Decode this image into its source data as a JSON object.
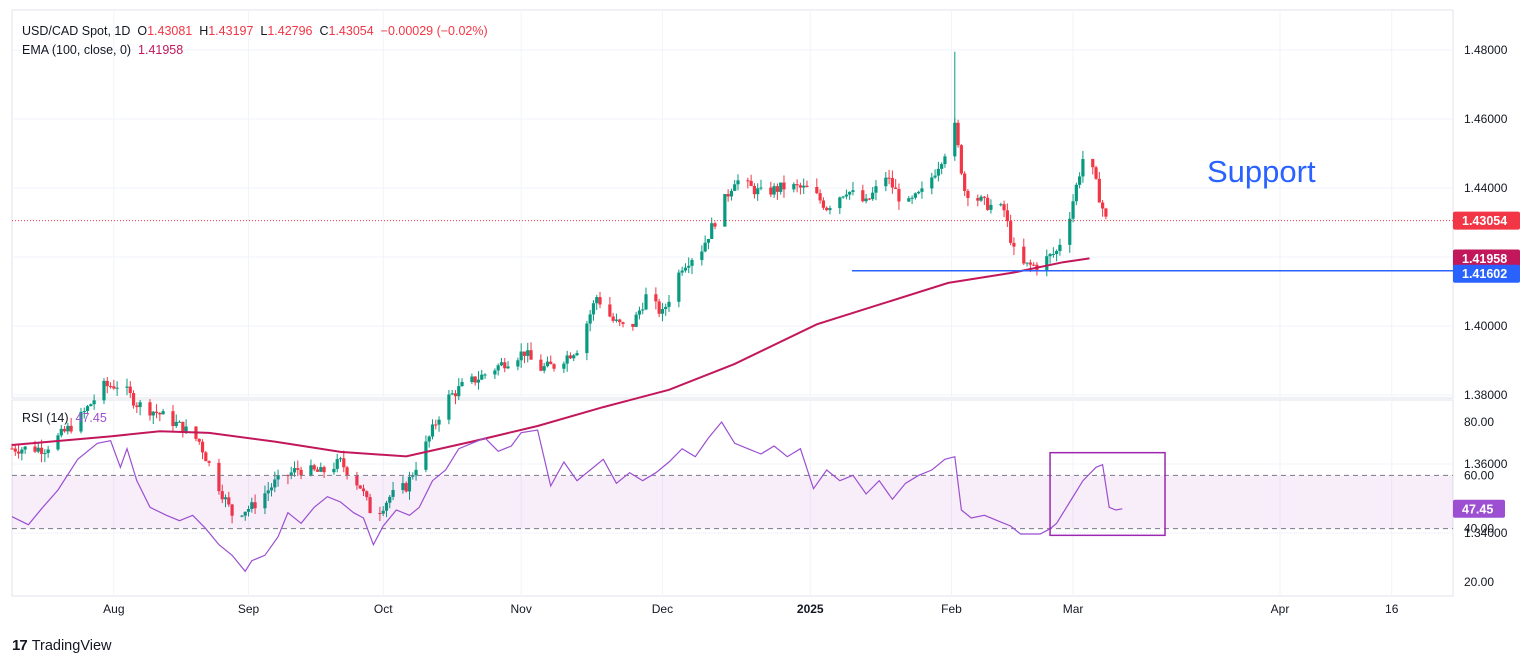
{
  "header": {
    "symbol": "USD/CAD Spot, 1D",
    "o_label": "O",
    "o": "1.43081",
    "h_label": "H",
    "h": "1.43197",
    "l_label": "L",
    "l": "1.42796",
    "c_label": "C",
    "c": "1.43054",
    "change": "−0.00029 (−0.02%)",
    "ema_label": "EMA (100, close, 0)",
    "ema_value": "1.41958",
    "rsi_label": "RSI (14)",
    "rsi_value": "47.45"
  },
  "branding": {
    "logo_mark": "17",
    "logo_text": "TradingView"
  },
  "annotation": {
    "support_text": "Support"
  },
  "colors": {
    "up": "#089981",
    "down": "#f23645",
    "ema": "#c2185b",
    "rsi": "#9c4fd1",
    "support": "#2962ff",
    "box": "#9c27b0"
  },
  "chart_data": [
    {
      "type": "candlestick",
      "title": "USD/CAD Spot, 1D",
      "ylim": [
        1.33,
        1.49
      ],
      "y_ticks": [
        "1.48000",
        "1.46000",
        "1.44000",
        "1.42000",
        "1.40000",
        "1.38000",
        "1.36000",
        "1.34000"
      ],
      "x_ticks": [
        "Aug",
        "Sep",
        "Oct",
        "Nov",
        "Dec",
        "2025",
        "Feb",
        "Mar",
        "Apr",
        "16"
      ],
      "x_tick_days": [
        31,
        72,
        113,
        155,
        198,
        243,
        286,
        323,
        386,
        420
      ],
      "price_tags": [
        {
          "label": "1.43054",
          "value": 1.43054,
          "color": "#f23645"
        },
        {
          "label": "1.41958",
          "value": 1.41958,
          "color": "#c2185b"
        },
        {
          "label": "1.41602",
          "value": 1.41602,
          "color": "#2962ff"
        }
      ],
      "support_level": 1.41602,
      "ema_series": {
        "name": "EMA (100, close, 0)",
        "points": [
          [
            0,
            1.3655
          ],
          [
            30,
            1.368
          ],
          [
            45,
            1.3695
          ],
          [
            60,
            1.369
          ],
          [
            80,
            1.3665
          ],
          [
            100,
            1.3635
          ],
          [
            120,
            1.3622
          ],
          [
            140,
            1.3665
          ],
          [
            160,
            1.371
          ],
          [
            180,
            1.3765
          ],
          [
            200,
            1.3815
          ],
          [
            220,
            1.389
          ],
          [
            245,
            1.4005
          ],
          [
            265,
            1.4065
          ],
          [
            285,
            1.4125
          ],
          [
            305,
            1.4155
          ],
          [
            320,
            1.4185
          ],
          [
            328,
            1.4196
          ]
        ]
      },
      "ohlc_anchors": [
        [
          0,
          1.3645
        ],
        [
          10,
          1.3645
        ],
        [
          20,
          1.3725
        ],
        [
          28,
          1.3825
        ],
        [
          33,
          1.383
        ],
        [
          38,
          1.3775
        ],
        [
          45,
          1.3745
        ],
        [
          52,
          1.3705
        ],
        [
          57,
          1.3665
        ],
        [
          62,
          1.3555
        ],
        [
          67,
          1.3455
        ],
        [
          73,
          1.3475
        ],
        [
          80,
          1.3545
        ],
        [
          87,
          1.3585
        ],
        [
          94,
          1.3575
        ],
        [
          100,
          1.3605
        ],
        [
          106,
          1.3535
        ],
        [
          110,
          1.3445
        ],
        [
          115,
          1.3505
        ],
        [
          120,
          1.3535
        ],
        [
          126,
          1.3655
        ],
        [
          132,
          1.3785
        ],
        [
          137,
          1.3825
        ],
        [
          143,
          1.3855
        ],
        [
          150,
          1.3895
        ],
        [
          156,
          1.3925
        ],
        [
          160,
          1.3875
        ],
        [
          165,
          1.3885
        ],
        [
          172,
          1.3935
        ],
        [
          178,
          1.4085
        ],
        [
          183,
          1.4015
        ],
        [
          188,
          1.3985
        ],
        [
          193,
          1.4085
        ],
        [
          198,
          1.4035
        ],
        [
          204,
          1.4175
        ],
        [
          210,
          1.4225
        ],
        [
          216,
          1.4345
        ],
        [
          220,
          1.4425
        ],
        [
          228,
          1.4385
        ],
        [
          236,
          1.4405
        ],
        [
          243,
          1.4395
        ],
        [
          248,
          1.4345
        ],
        [
          254,
          1.4395
        ],
        [
          260,
          1.4355
        ],
        [
          266,
          1.4435
        ],
        [
          272,
          1.4345
        ],
        [
          278,
          1.4395
        ],
        [
          284,
          1.4505
        ],
        [
          287,
          1.4575
        ],
        [
          290,
          1.4395
        ],
        [
          296,
          1.4355
        ],
        [
          302,
          1.4335
        ],
        [
          306,
          1.4175
        ],
        [
          312,
          1.4175
        ],
        [
          318,
          1.4215
        ],
        [
          322,
          1.4325
        ],
        [
          326,
          1.4485
        ],
        [
          329,
          1.4445
        ],
        [
          331,
          1.4375
        ],
        [
          333,
          1.4308
        ],
        [
          334,
          1.4305
        ]
      ]
    },
    {
      "type": "line",
      "title": "RSI (14)",
      "ylim": [
        15,
        88
      ],
      "y_ticks": [
        "80.00",
        "60.00",
        "40.00",
        "20.00"
      ],
      "bands": [
        40,
        60
      ],
      "highlight_box": {
        "x_days": [
          316,
          351
        ],
        "y": [
          37.5,
          68.5
        ]
      },
      "value_tag": {
        "label": "47.45",
        "value": 47.45
      },
      "series": [
        {
          "points": [
            [
              0,
              44.5
            ],
            [
              5,
              41.5
            ],
            [
              9,
              47.5
            ],
            [
              14,
              54.5
            ],
            [
              20,
              66
            ],
            [
              26,
              72
            ],
            [
              30,
              73
            ],
            [
              33,
              63
            ],
            [
              35,
              70
            ],
            [
              38,
              58
            ],
            [
              42,
              48
            ],
            [
              47,
              45
            ],
            [
              51,
              43
            ],
            [
              55,
              45
            ],
            [
              59,
              40
            ],
            [
              63,
              34
            ],
            [
              67,
              30
            ],
            [
              71,
              24
            ],
            [
              73,
              28
            ],
            [
              77,
              30
            ],
            [
              81,
              37
            ],
            [
              84,
              46
            ],
            [
              88,
              42
            ],
            [
              92,
              48
            ],
            [
              96,
              52
            ],
            [
              100,
              50
            ],
            [
              104,
              46
            ],
            [
              107,
              44
            ],
            [
              110,
              34
            ],
            [
              113,
              41
            ],
            [
              117,
              47
            ],
            [
              121,
              45
            ],
            [
              124,
              48
            ],
            [
              128,
              58
            ],
            [
              132,
              62
            ],
            [
              136,
              70
            ],
            [
              140,
              72
            ],
            [
              144,
              74
            ],
            [
              148,
              69
            ],
            [
              152,
              71
            ],
            [
              155,
              76
            ],
            [
              160,
              77
            ],
            [
              164,
              56
            ],
            [
              168,
              65
            ],
            [
              172,
              58
            ],
            [
              176,
              62
            ],
            [
              180,
              66
            ],
            [
              184,
              57
            ],
            [
              188,
              61
            ],
            [
              192,
              58
            ],
            [
              196,
              61
            ],
            [
              200,
              65
            ],
            [
              204,
              70
            ],
            [
              208,
              67
            ],
            [
              212,
              74
            ],
            [
              216,
              80
            ],
            [
              220,
              72
            ],
            [
              224,
              70
            ],
            [
              228,
              68
            ],
            [
              232,
              71
            ],
            [
              236,
              67
            ],
            [
              240,
              70
            ],
            [
              244,
              55
            ],
            [
              248,
              62
            ],
            [
              252,
              58
            ],
            [
              256,
              60
            ],
            [
              260,
              53
            ],
            [
              264,
              58
            ],
            [
              268,
              51
            ],
            [
              272,
              57
            ],
            [
              276,
              60
            ],
            [
              280,
              62
            ],
            [
              284,
              66
            ],
            [
              287,
              67
            ],
            [
              289,
              47
            ],
            [
              292,
              44
            ],
            [
              296,
              45
            ],
            [
              300,
              43
            ],
            [
              304,
              41
            ],
            [
              307,
              38
            ],
            [
              310,
              38
            ],
            [
              313,
              38
            ],
            [
              316,
              40
            ],
            [
              318,
              42
            ],
            [
              322,
              50
            ],
            [
              326,
              58
            ],
            [
              330,
              63
            ],
            [
              332,
              64
            ],
            [
              334,
              48
            ],
            [
              336,
              47
            ],
            [
              338,
              47.45
            ]
          ]
        }
      ]
    }
  ]
}
